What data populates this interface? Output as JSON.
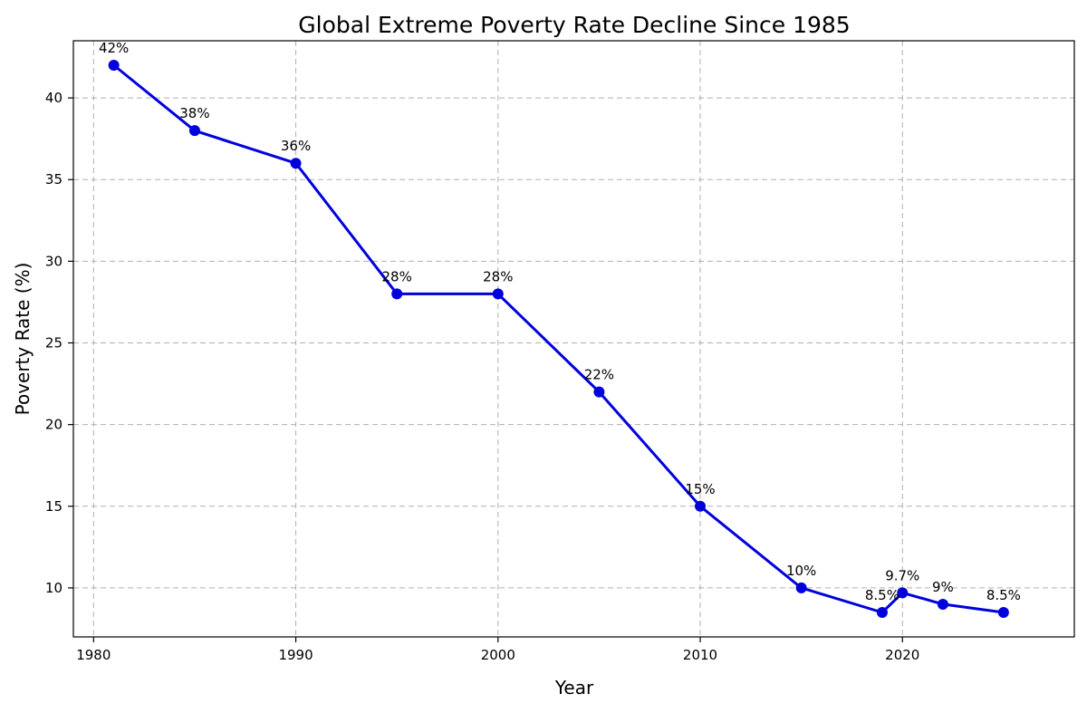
{
  "chart_data": {
    "type": "line",
    "title": "Global Extreme Poverty Rate Decline Since 1985",
    "xlabel": "Year",
    "ylabel": "Poverty Rate (%)",
    "xlim": [
      1979,
      2028.5
    ],
    "ylim": [
      7,
      43.5
    ],
    "xticks": [
      1980,
      1990,
      2000,
      2010,
      2020
    ],
    "yticks": [
      10,
      15,
      20,
      25,
      30,
      35,
      40
    ],
    "grid": true,
    "color": "#0000dd",
    "series": [
      {
        "x": [
          1981,
          1985,
          1990,
          1995,
          2000,
          2005,
          2010,
          2015,
          2019,
          2020,
          2022,
          2025
        ],
        "values": [
          42,
          38,
          36,
          28,
          28,
          22,
          15,
          10,
          8.5,
          9.7,
          9,
          8.5
        ],
        "labels": [
          "42%",
          "38%",
          "36%",
          "28%",
          "28%",
          "22%",
          "15%",
          "10%",
          "8.5%",
          "9.7%",
          "9%",
          "8.5%"
        ]
      }
    ]
  }
}
